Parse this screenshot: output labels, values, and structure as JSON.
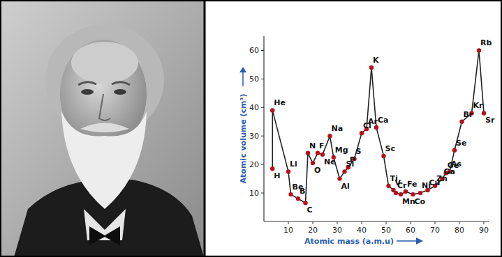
{
  "chart_data": {
    "type": "line",
    "x_label": "Atomic mass (a.m.u)",
    "y_label": "Atomic volume (cm³)",
    "x": [
      3.5,
      3.5,
      10,
      11,
      14,
      17,
      18,
      20,
      22,
      24,
      27,
      28.5,
      31,
      33,
      34.5,
      37,
      40,
      42,
      44,
      46,
      49,
      51,
      53,
      54,
      56,
      58,
      61,
      64,
      67,
      70,
      73,
      74.5,
      76,
      78,
      81,
      85,
      88,
      90
    ],
    "values": [
      18.5,
      39,
      17.5,
      9.5,
      8,
      6.5,
      24,
      20.5,
      24,
      23.5,
      30,
      22.5,
      15,
      17.5,
      19,
      22,
      31,
      32.5,
      54,
      33,
      23,
      12.5,
      11,
      10,
      9.5,
      10.5,
      9.5,
      10,
      11,
      12.5,
      15,
      17,
      17.5,
      25,
      35,
      38,
      60,
      38
    ],
    "labels": [
      "H",
      "He",
      "Li",
      "Be",
      "B",
      "C",
      "N",
      "O",
      "F",
      "Ne",
      "Na",
      "Mg",
      "Al",
      "Si",
      "P",
      "S",
      "Cl",
      "Ar",
      "K",
      "Ca",
      "Sc",
      "Ti",
      "V",
      "Cr",
      "Mn",
      "Fe",
      "Co",
      "Ni",
      "Cu",
      "Zn",
      "Ga",
      "Ge",
      "As",
      "Se",
      "Br",
      "Kr",
      "Rb",
      "Sr"
    ],
    "color": "#b5121b",
    "marker": "circle",
    "line_style": "solid",
    "xlim": [
      0,
      92
    ],
    "ylim": [
      0,
      65
    ],
    "xticks": [
      10,
      20,
      30,
      40,
      50,
      60,
      70,
      80,
      90
    ],
    "yticks": [
      10,
      20,
      30,
      40,
      50,
      60
    ],
    "grid": false
  }
}
